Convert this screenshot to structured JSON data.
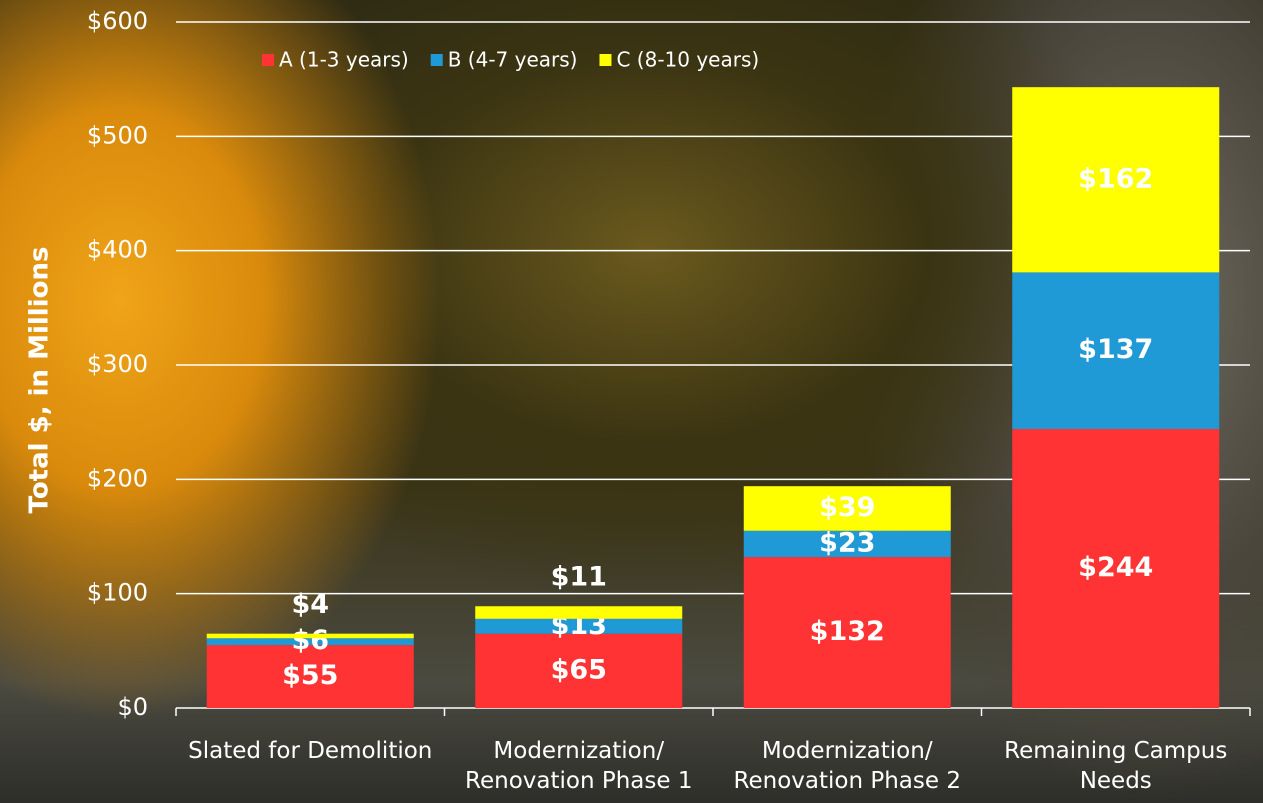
{
  "chart_data": {
    "type": "stacked_bar",
    "y_label": "Total $, in Millions",
    "categories": [
      "Slated for Demolition",
      "Modernization/ Renovation Phase 1",
      "Modernization/ Renovation Phase 2",
      "Remaining Campus Needs"
    ],
    "series": [
      {
        "name": "A (1-3 years)",
        "color": "#ff3333",
        "values": [
          55,
          65,
          132,
          244
        ],
        "value_labels": [
          "$55",
          "$65",
          "$132",
          "$244"
        ]
      },
      {
        "name": "B (4-7 years)",
        "color": "#1f9ad6",
        "values": [
          6,
          13,
          23,
          137
        ],
        "value_labels": [
          "$6",
          "$13",
          "$23",
          "$137"
        ]
      },
      {
        "name": "C (8-10 years)",
        "color": "#ffff00",
        "values": [
          4,
          11,
          39,
          162
        ],
        "value_labels": [
          "$4",
          "$11",
          "$39",
          "$162"
        ]
      }
    ],
    "ylim": [
      0,
      600
    ],
    "yticks": [
      {
        "value": 0,
        "label": "$0"
      },
      {
        "value": 100,
        "label": "$100"
      },
      {
        "value": 200,
        "label": "$200"
      },
      {
        "value": 300,
        "label": "$300"
      },
      {
        "value": 400,
        "label": "$400"
      },
      {
        "value": 500,
        "label": "$500"
      },
      {
        "value": 600,
        "label": "$600"
      }
    ],
    "grid": true
  }
}
